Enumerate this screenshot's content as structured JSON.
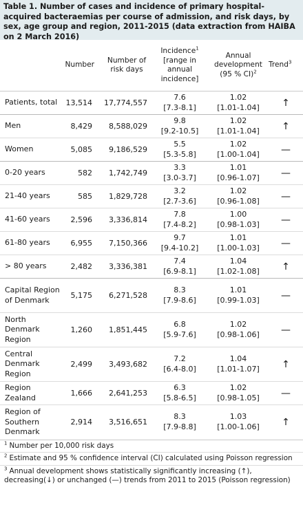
{
  "caption": "Table 1. Number of cases and incidence of primary hospital-acquired bacteraemias per course of admission, and risk days, by sex, age group and region, 2011-2015 (data extraction from HAIBA on 2 March 2016)",
  "headers": {
    "number": "Number",
    "risk_days": "Number of risk days",
    "incidence": "Incidence",
    "incidence_sup": "1",
    "incidence_range": "[range in annual incidence]",
    "annual_dev": "Annual development",
    "annual_ci": "(95 % CI)",
    "annual_sup": "2",
    "trend": "Trend",
    "trend_sup": "3"
  },
  "rows": [
    {
      "label": "Patients, total",
      "number": "13,514",
      "risk_days": "17,774,557",
      "incidence": "7.6",
      "incidence_range": "[7.3-8.1]",
      "dev": "1.02",
      "dev_ci": "[1.01-1.04]",
      "trend": "↑"
    },
    {
      "label": "Men",
      "number": "8,429",
      "risk_days": "8,588,029",
      "incidence": "9.8",
      "incidence_range": "[9.2-10.5]",
      "dev": "1.02",
      "dev_ci": "[1.01-1.04]",
      "trend": "↑"
    },
    {
      "label": "Women",
      "number": "5,085",
      "risk_days": "9,186,529",
      "incidence": "5.5",
      "incidence_range": "[5.3-5.8]",
      "dev": "1.02",
      "dev_ci": "[1.00-1.04]",
      "trend": "—"
    },
    {
      "label": "0-20 years",
      "number": "582",
      "risk_days": "1,742,749",
      "incidence": "3.3",
      "incidence_range": "[3.0-3.7]",
      "dev": "1.01",
      "dev_ci": "[0.96-1.07]",
      "trend": "—"
    },
    {
      "label": "21-40 years",
      "number": "585",
      "risk_days": "1,829,728",
      "incidence": "3.2",
      "incidence_range": "[2.7-3.6]",
      "dev": "1.02",
      "dev_ci": "[0.96-1.08]",
      "trend": "—"
    },
    {
      "label": "41-60 years",
      "number": "2,596",
      "risk_days": "3,336,814",
      "incidence": "7.8",
      "incidence_range": "[7.4-8.2]",
      "dev": "1.00",
      "dev_ci": "[0.98-1.03]",
      "trend": "—"
    },
    {
      "label": "61-80 years",
      "number": "6,955",
      "risk_days": "7,150,366",
      "incidence": "9.7",
      "incidence_range": "[9.4-10.2]",
      "dev": "1.01",
      "dev_ci": "[1.00-1.03]",
      "trend": "—"
    },
    {
      "label": "> 80 years",
      "number": "2,482",
      "risk_days": "3,336,381",
      "incidence": "7.4",
      "incidence_range": "[6.9-8.1]",
      "dev": "1.04",
      "dev_ci": "[1.02-1.08]",
      "trend": "↑"
    },
    {
      "label": "Capital Region of Denmark",
      "number": "5,175",
      "risk_days": "6,271,528",
      "incidence": "8.3",
      "incidence_range": "[7.9-8.6]",
      "dev": "1.01",
      "dev_ci": "[0.99-1.03]",
      "trend": "—"
    },
    {
      "label": "North Denmark Region",
      "number": "1,260",
      "risk_days": "1,851,445",
      "incidence": "6.8",
      "incidence_range": "[5.9-7.6]",
      "dev": "1.02",
      "dev_ci": "[0.98-1.06]",
      "trend": "—"
    },
    {
      "label": "Central Denmark Region",
      "number": "2,499",
      "risk_days": "3,493,682",
      "incidence": "7.2",
      "incidence_range": "[6.4-8.0]",
      "dev": "1.04",
      "dev_ci": "[1.01-1.07]",
      "trend": "↑"
    },
    {
      "label": "Region Zealand",
      "number": "1,666",
      "risk_days": "2,641,253",
      "incidence": "6.3",
      "incidence_range": "[5.8-6.5]",
      "dev": "1.02",
      "dev_ci": "[0.98-1.05]",
      "trend": "—"
    },
    {
      "label": "Region of Southern Denmark",
      "number": "2,914",
      "risk_days": "3,516,651",
      "incidence": "8.3",
      "incidence_range": "[7.9-8.8]",
      "dev": "1.03",
      "dev_ci": "[1.00-1.06]",
      "trend": "↑"
    }
  ],
  "footnotes": [
    {
      "sup": "1",
      "text": "Number per 10,000 risk days"
    },
    {
      "sup": "2",
      "text": "Estimate and 95 % confidence interval (CI) calculated using Poisson regression"
    },
    {
      "sup": "3",
      "text": "Annual development shows statistically significantly increasing (↑), decreasing(↓) or unchanged (—) trends from 2011 to 2015 (Poisson regression)"
    }
  ]
}
